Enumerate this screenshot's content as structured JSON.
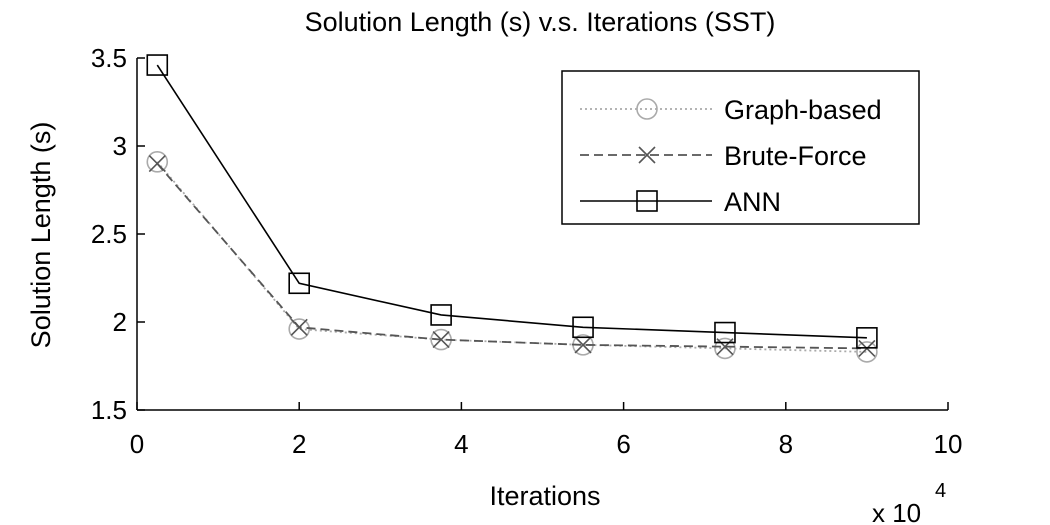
{
  "chart_data": {
    "type": "line",
    "title": "Solution Length (s) v.s. Iterations (SST)",
    "xlabel": "Iterations",
    "ylabel": "Solution Length (s)",
    "x_multiplier_base": "x 10",
    "x_multiplier_exp": "4",
    "xlim": [
      0,
      10
    ],
    "ylim": [
      1.5,
      3.5
    ],
    "xticks": [
      0,
      2,
      4,
      6,
      8,
      10
    ],
    "xtick_labels": [
      "0",
      "2",
      "4",
      "6",
      "8",
      "10"
    ],
    "yticks": [
      1.5,
      2,
      2.5,
      3,
      3.5
    ],
    "ytick_labels": [
      "1.5",
      "2",
      "2.5",
      "3",
      "3.5"
    ],
    "grid": false,
    "legend_position": "top-right",
    "x": [
      0.25,
      2.0,
      3.75,
      5.5,
      7.25,
      9.0
    ],
    "series": [
      {
        "name": "Graph-based",
        "values": [
          2.91,
          1.96,
          1.9,
          1.87,
          1.85,
          1.83
        ],
        "color": "#aaaaaa",
        "line": "dotted",
        "marker": "circle"
      },
      {
        "name": "Brute-Force",
        "values": [
          2.9,
          1.97,
          1.9,
          1.87,
          1.86,
          1.85
        ],
        "color": "#555555",
        "line": "dashed",
        "marker": "x"
      },
      {
        "name": "ANN",
        "values": [
          3.46,
          2.22,
          2.04,
          1.97,
          1.94,
          1.91
        ],
        "color": "#000000",
        "line": "solid",
        "marker": "square"
      }
    ]
  }
}
